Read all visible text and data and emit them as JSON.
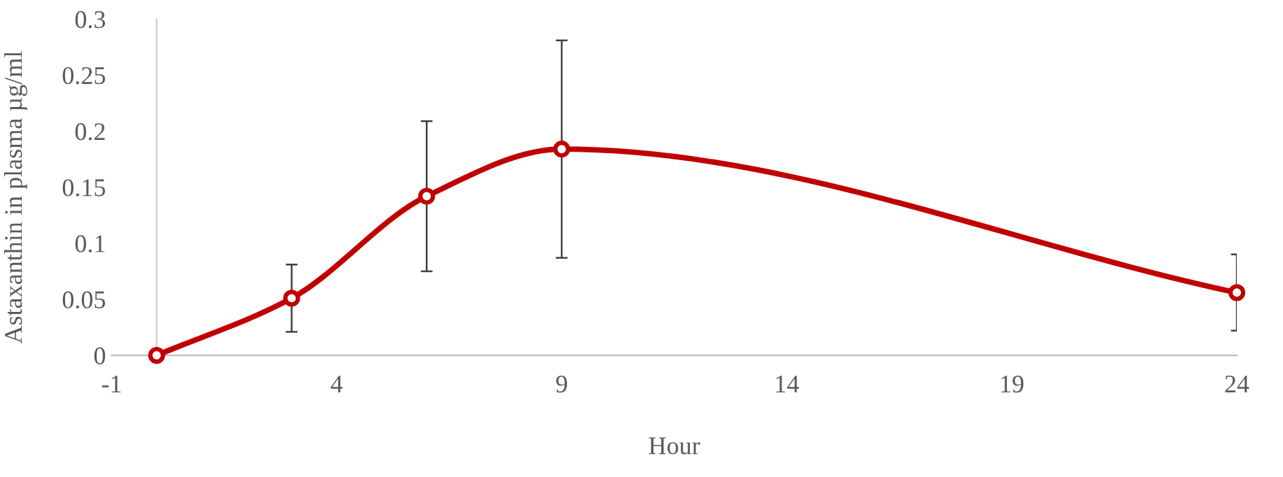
{
  "chart_data": {
    "type": "line",
    "xlabel": "Hour",
    "ylabel": "Astaxanthin in plasma µg/ml",
    "x": [
      0,
      3,
      6,
      9,
      24
    ],
    "series": [
      {
        "color": "#c00000",
        "values": [
          0,
          0.051,
          0.142,
          0.184,
          0.056
        ],
        "errors": [
          null,
          [
            0.021,
            0.081
          ],
          [
            0.075,
            0.209
          ],
          [
            0.087,
            0.281
          ],
          [
            0.022,
            0.09
          ]
        ]
      }
    ],
    "xlim": [
      -1,
      24
    ],
    "xticks": [
      -1,
      4,
      9,
      14,
      19,
      24
    ],
    "ylim": [
      0,
      0.3
    ],
    "yticks": [
      0,
      0.05,
      0.1,
      0.15,
      0.2,
      0.25,
      0.3
    ],
    "marker": "circle",
    "line_style": "solid",
    "grid": false,
    "legend": false
  }
}
